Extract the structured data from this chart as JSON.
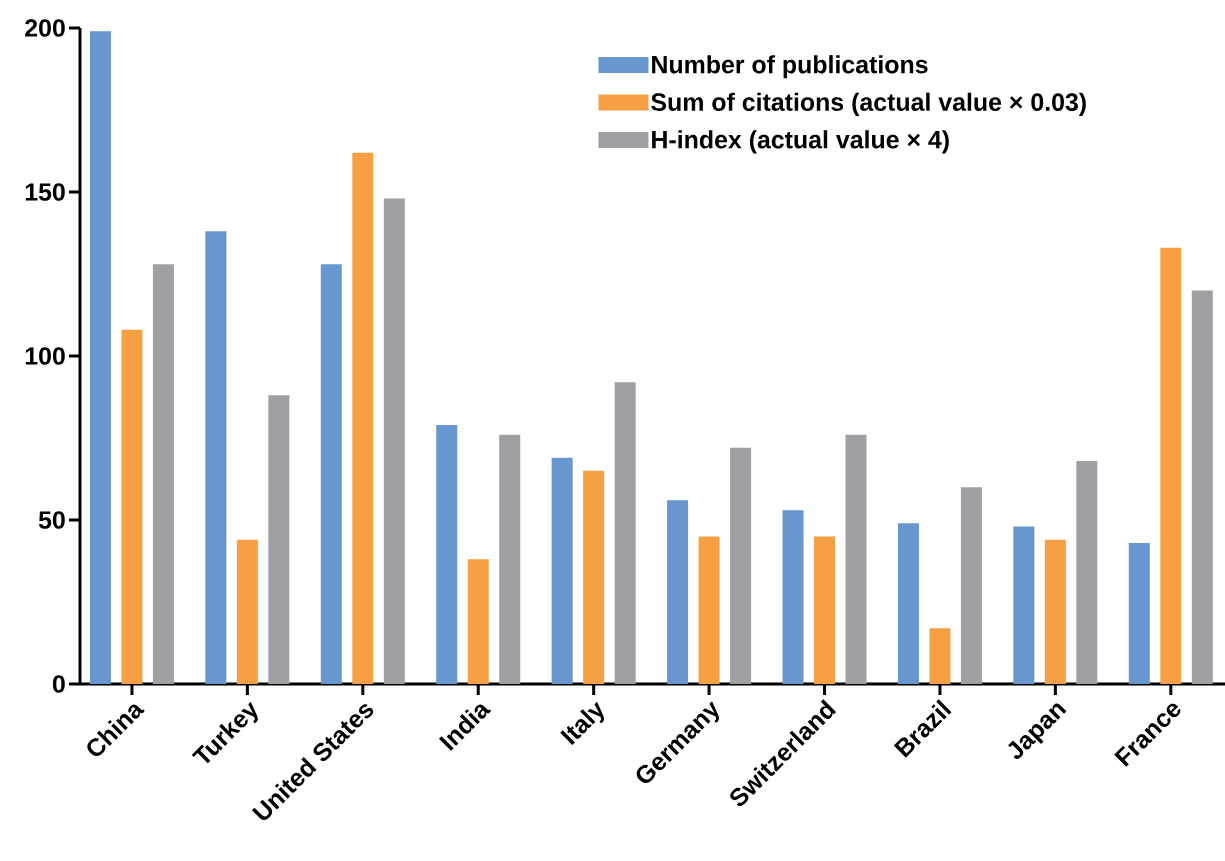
{
  "chart_data": {
    "type": "bar",
    "categories": [
      "China",
      "Turkey",
      "United States",
      "India",
      "Italy",
      "Germany",
      "Switzerland",
      "Brazil",
      "Japan",
      "France"
    ],
    "series": [
      {
        "name": "Number of publications",
        "color": "#6897d0",
        "values": [
          199,
          138,
          128,
          79,
          69,
          56,
          53,
          49,
          48,
          43
        ]
      },
      {
        "name": "Sum of citations (actual value × 0.03)",
        "color": "#f7a043",
        "values": [
          108,
          44,
          162,
          38,
          65,
          45,
          45,
          17,
          44,
          133
        ]
      },
      {
        "name": "H-index (actual value × 4)",
        "color": "#a0a0a4",
        "values": [
          128,
          88,
          148,
          76,
          92,
          72,
          76,
          60,
          68,
          120
        ]
      }
    ],
    "ylim": [
      0,
      200
    ],
    "yticks": [
      0,
      50,
      100,
      150,
      200
    ],
    "legend": "top right",
    "grid": false
  }
}
